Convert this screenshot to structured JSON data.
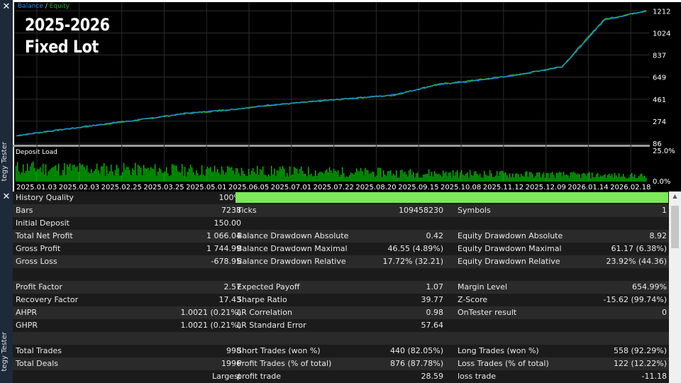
{
  "sidebar": {
    "close_top": "✕",
    "close_mid": "✕",
    "label_top": "tegy Tester",
    "label_bottom": "tegy Tester"
  },
  "chart": {
    "overlay_title_line1": "2025-2026",
    "overlay_title_line2": "Fixed Lot",
    "legend": {
      "balance": "Balance",
      "separator": " / ",
      "equity": "Equity"
    },
    "colors": {
      "background": "#000000",
      "balance": "#1e90ff",
      "equity": "#22aa22",
      "deposit_load": "#00cc00",
      "grid": "#2b2b2b",
      "axis_text": "#ffffff"
    },
    "deposit_load_label": "Deposit Load",
    "deposit_load_ticks": [
      "25.0%",
      "0.0%"
    ],
    "x_ticks": [
      "2025.01.03",
      "2025.02.03",
      "2025.02.25",
      "2025.03.25",
      "2025.05.01",
      "2025.06.05",
      "2025.07.01",
      "2025.07.22",
      "2025.08.20",
      "2025.09.15",
      "2025.10.08",
      "2025.11.12",
      "2025.12.09",
      "2026.01.14",
      "2026.02.18"
    ]
  },
  "chart_data": {
    "type": "line",
    "x": [
      "2025.01.03",
      "2025.02.03",
      "2025.02.25",
      "2025.03.25",
      "2025.05.01",
      "2025.06.05",
      "2025.07.01",
      "2025.07.22",
      "2025.08.20",
      "2025.09.15",
      "2025.10.08",
      "2025.11.12",
      "2025.12.09",
      "2026.01.14",
      "2026.02.18",
      "2026.02.28"
    ],
    "series": [
      {
        "name": "Balance",
        "values": [
          150,
          200,
          245,
          290,
          340,
          370,
          410,
          440,
          470,
          500,
          580,
          620,
          670,
          735,
          1130,
          1216
        ]
      },
      {
        "name": "Equity",
        "values": [
          150,
          198,
          243,
          288,
          338,
          368,
          408,
          438,
          468,
          495,
          585,
          625,
          672,
          740,
          1140,
          1212
        ]
      }
    ],
    "yticks": [
      "1212",
      "1024",
      "837",
      "649",
      "461",
      "274",
      "86"
    ],
    "ylim": [
      86,
      1250
    ],
    "grid": true,
    "legend_position": "top-left"
  },
  "history_quality": {
    "label": "History Quality",
    "value": "100%",
    "bar_fraction": 1.0,
    "bar_color": "#7de85a"
  },
  "rows": [
    {
      "c1": [
        "Bars",
        "7238"
      ],
      "c2": [
        "Ticks",
        "109458230"
      ],
      "c3": [
        "Symbols",
        "1"
      ]
    },
    {
      "c1": [
        "Initial Deposit",
        "150.00"
      ],
      "c2": [
        "",
        ""
      ],
      "c3": [
        "",
        ""
      ]
    },
    {
      "c1": [
        "Total Net Profit",
        "1 066.04"
      ],
      "c2": [
        "Balance Drawdown Absolute",
        "0.42"
      ],
      "c3": [
        "Equity Drawdown Absolute",
        "8.92"
      ]
    },
    {
      "c1": [
        "Gross Profit",
        "1 744.99"
      ],
      "c2": [
        "Balance Drawdown Maximal",
        "46.55 (4.89%)"
      ],
      "c3": [
        "Equity Drawdown Maximal",
        "61.17 (6.38%)"
      ]
    },
    {
      "c1": [
        "Gross Loss",
        "-678.95"
      ],
      "c2": [
        "Balance Drawdown Relative",
        "17.72% (32.21)"
      ],
      "c3": [
        "Equity Drawdown Relative",
        "23.92% (44.36)"
      ]
    },
    {
      "c1": [
        "",
        ""
      ],
      "c2": [
        "",
        ""
      ],
      "c3": [
        "",
        ""
      ]
    },
    {
      "c1": [
        "Profit Factor",
        "2.57"
      ],
      "c2": [
        "Expected Payoff",
        "1.07"
      ],
      "c3": [
        "Margin Level",
        "654.99%"
      ]
    },
    {
      "c1": [
        "Recovery Factor",
        "17.43"
      ],
      "c2": [
        "Sharpe Ratio",
        "39.77"
      ],
      "c3": [
        "Z-Score",
        "-15.62 (99.74%)"
      ]
    },
    {
      "c1": [
        "AHPR",
        "1.0021 (0.21%)"
      ],
      "c2": [
        "LR Correlation",
        "0.98"
      ],
      "c3": [
        "OnTester result",
        "0"
      ]
    },
    {
      "c1": [
        "GHPR",
        "1.0021 (0.21%)"
      ],
      "c2": [
        "LR Standard Error",
        "57.64"
      ],
      "c3": [
        "",
        ""
      ]
    },
    {
      "c1": [
        "",
        ""
      ],
      "c2": [
        "",
        ""
      ],
      "c3": [
        "",
        ""
      ]
    },
    {
      "c1": [
        "Total Trades",
        "998"
      ],
      "c2": [
        "Short Trades (won %)",
        "440 (82.05%)"
      ],
      "c3": [
        "Long Trades (won %)",
        "558 (92.29%)"
      ]
    },
    {
      "c1": [
        "Total Deals",
        "1996"
      ],
      "c2": [
        "Profit Trades (% of total)",
        "876 (87.78%)"
      ],
      "c3": [
        "Loss Trades (% of total)",
        "122 (12.22%)"
      ]
    },
    {
      "c1": [
        "",
        "Largest"
      ],
      "c2": [
        "profit trade",
        "28.59"
      ],
      "c3": [
        "loss trade",
        "-11.18"
      ]
    }
  ],
  "scrollbar": {
    "up_arrow": "▲"
  }
}
